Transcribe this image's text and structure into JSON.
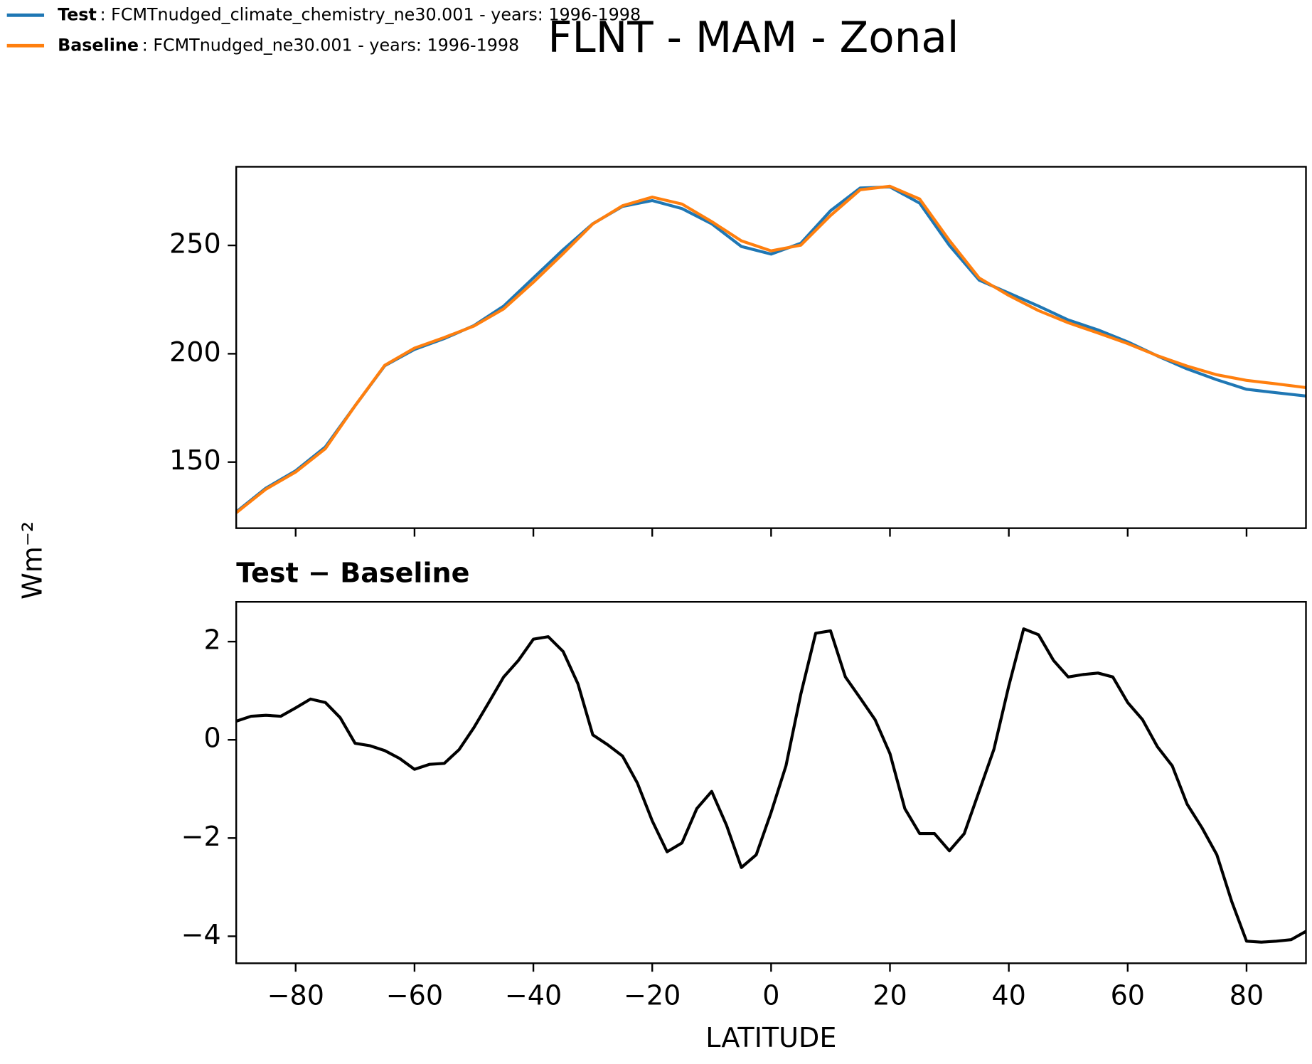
{
  "figure": {
    "title": "FLNT - MAM - Zonal",
    "ylabel": "Wm⁻²"
  },
  "chart_data": [
    {
      "type": "line",
      "x": [
        -90,
        -85,
        -80,
        -75,
        -70,
        -65,
        -60,
        -55,
        -50,
        -45,
        -40,
        -35,
        -30,
        -25,
        -20,
        -15,
        -10,
        -5,
        0,
        5,
        10,
        15,
        20,
        25,
        30,
        35,
        40,
        45,
        50,
        55,
        60,
        65,
        70,
        75,
        80,
        85,
        90
      ],
      "series": [
        {
          "name": "Test",
          "label": ": FCMTnudged_climate_chemistry_ne30.001 - years: 1996-1998",
          "color": "#1f77b4",
          "values": [
            127,
            138,
            146,
            157,
            176,
            194.5,
            202,
            207,
            213,
            222,
            235,
            248,
            260,
            268,
            270.7,
            267,
            260,
            249.5,
            246,
            251,
            266,
            276.5,
            277,
            269.5,
            250,
            234,
            228,
            222,
            215.6,
            211,
            205.5,
            199,
            193,
            188,
            183.6,
            182,
            180.5
          ]
        },
        {
          "name": "Baseline",
          "label": ": FCMTnudged_ne30.001 - years: 1996-1998",
          "color": "#ff7f0e",
          "values": [
            126.6,
            137.5,
            145.4,
            156.2,
            176,
            194.7,
            202.6,
            207.5,
            212.8,
            220.7,
            233,
            246.2,
            259.9,
            268.3,
            272.3,
            269.1,
            261,
            252.1,
            247.5,
            250.1,
            263.8,
            275.7,
            277.3,
            271.4,
            252.3,
            235,
            226.9,
            219.9,
            214.3,
            209.6,
            204.7,
            199.1,
            194.3,
            190.3,
            187.7,
            186.1,
            184.4
          ]
        }
      ],
      "xlim": [
        -90,
        90
      ],
      "xticks": [
        -80,
        -60,
        -40,
        -20,
        0,
        20,
        40,
        60,
        80
      ],
      "ylim": [
        119.5,
        286.3
      ],
      "yticks": [
        150,
        200,
        250
      ]
    },
    {
      "type": "line",
      "title": "Test − Baseline",
      "xlabel": "LATITUDE",
      "color": "#000000",
      "x": [
        -90,
        -87.5,
        -85,
        -82.5,
        -80,
        -77.5,
        -75,
        -72.5,
        -70,
        -67.5,
        -65,
        -62.5,
        -60,
        -57.5,
        -55,
        -52.5,
        -50,
        -47.5,
        -45,
        -42.5,
        -40,
        -37.5,
        -35,
        -32.5,
        -30,
        -27.5,
        -25,
        -22.5,
        -20,
        -17.5,
        -15,
        -12.5,
        -10,
        -7.5,
        -5,
        -2.5,
        0,
        2.5,
        5,
        7.5,
        10,
        12.5,
        15,
        17.5,
        20,
        22.5,
        25,
        27.5,
        30,
        32.5,
        35,
        37.5,
        40,
        42.5,
        45,
        47.5,
        50,
        52.5,
        55,
        57.5,
        60,
        62.5,
        65,
        67.5,
        70,
        72.5,
        75,
        77.5,
        80,
        82.5,
        85,
        87.5,
        90
      ],
      "values": [
        0.38,
        0.48,
        0.5,
        0.48,
        0.65,
        0.83,
        0.76,
        0.45,
        -0.07,
        -0.12,
        -0.22,
        -0.38,
        -0.6,
        -0.5,
        -0.48,
        -0.2,
        0.25,
        0.76,
        1.28,
        1.62,
        2.05,
        2.1,
        1.8,
        1.14,
        0.1,
        -0.1,
        -0.33,
        -0.88,
        -1.65,
        -2.28,
        -2.1,
        -1.4,
        -1.05,
        -1.74,
        -2.6,
        -2.34,
        -1.48,
        -0.53,
        0.93,
        2.17,
        2.22,
        1.28,
        0.85,
        0.41,
        -0.28,
        -1.4,
        -1.91,
        -1.91,
        -2.26,
        -1.91,
        -1.05,
        -0.19,
        1.1,
        2.26,
        2.14,
        1.62,
        1.28,
        1.33,
        1.36,
        1.28,
        0.76,
        0.41,
        -0.14,
        -0.53,
        -1.31,
        -1.79,
        -2.34,
        -3.29,
        -4.1,
        -4.12,
        -4.1,
        -4.07,
        -3.9
      ],
      "xlim": [
        -90,
        90
      ],
      "xticks": [
        {
          "value": -80,
          "label": "−80"
        },
        {
          "value": -60,
          "label": "−60"
        },
        {
          "value": -40,
          "label": "−40"
        },
        {
          "value": -20,
          "label": "−20"
        },
        0,
        20,
        40,
        60,
        80
      ],
      "ylim": [
        -4.55,
        2.81
      ],
      "yticks": [
        {
          "value": -4,
          "label": "−4"
        },
        {
          "value": -2,
          "label": "−2"
        },
        0,
        2
      ]
    }
  ]
}
